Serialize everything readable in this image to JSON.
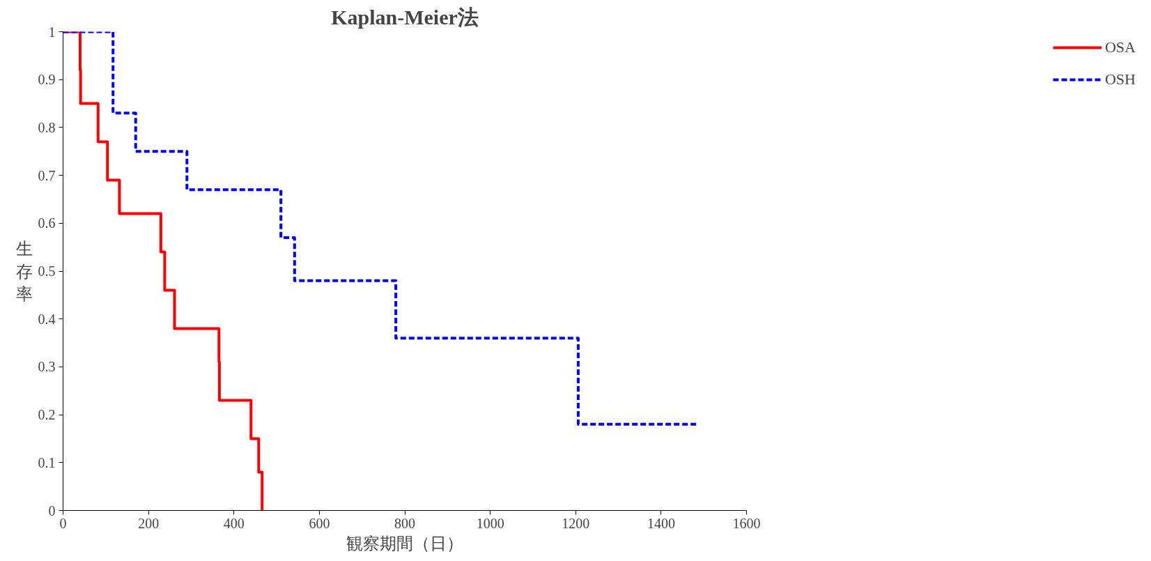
{
  "chart_data": {
    "type": "step",
    "title": "Kaplan-Meier法",
    "xlabel": "観察期間（日）",
    "ylabel": "生存率",
    "series": [
      {
        "name": "OSA",
        "color": "#ff0000",
        "line_style": "solid",
        "x": [
          0,
          40,
          41,
          82,
          104,
          132,
          229,
          238,
          261,
          365,
          366,
          440,
          458,
          466
        ],
        "values": [
          1,
          0.92,
          0.85,
          0.77,
          0.69,
          0.62,
          0.54,
          0.46,
          0.38,
          0.31,
          0.23,
          0.15,
          0.08,
          0
        ]
      },
      {
        "name": "OSH",
        "color": "#0000ff",
        "line_style": "dashed",
        "x": [
          0,
          117,
          170,
          290,
          510,
          542,
          779,
          1206,
          1488
        ],
        "values": [
          1,
          0.83,
          0.75,
          0.67,
          0.57,
          0.48,
          0.36,
          0.18,
          0.18
        ]
      }
    ],
    "xlim": [
      0,
      1600
    ],
    "xticks": [
      0,
      200,
      400,
      600,
      800,
      1000,
      1200,
      1400,
      1600
    ],
    "ylim": [
      0,
      1
    ],
    "yticks": [
      0,
      0.1,
      0.2,
      0.3,
      0.4,
      0.5,
      0.6,
      0.7,
      0.8,
      0.9,
      1
    ],
    "grid": false,
    "legend": "right"
  }
}
